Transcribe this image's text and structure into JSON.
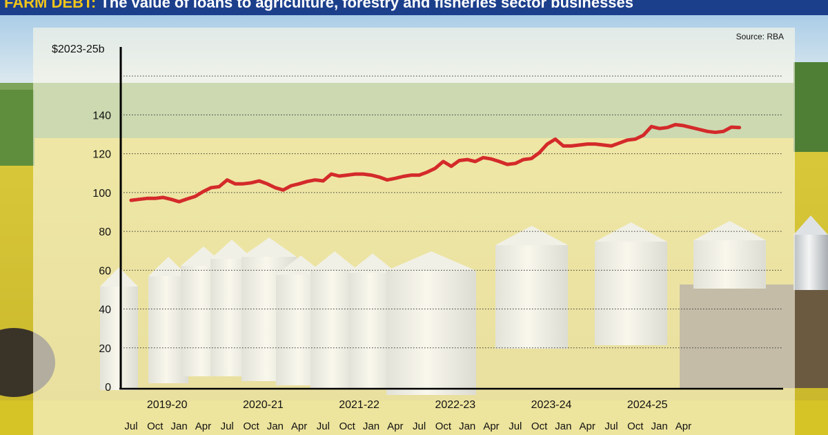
{
  "header": {
    "lead": "FARM DEBT:",
    "rest": " The value of loans to agriculture, forestry and fisheries sector businesses"
  },
  "source": "Source: RBA",
  "colors": {
    "line": "#d42a2a",
    "title_bg": "#1c3f8c",
    "title_accent": "#f2c619"
  },
  "chart_data": {
    "type": "line",
    "title": "FARM DEBT: The value of loans to agriculture, forestry and fisheries sector businesses",
    "ylabel": "$2023-25b",
    "xlabel": "",
    "ylim": [
      0,
      175
    ],
    "yticks": [
      0,
      20,
      40,
      60,
      80,
      100,
      120,
      140
    ],
    "grid": "horizontal dotted",
    "month_ticks": [
      "Jul",
      "Oct",
      "Jan",
      "Apr",
      "Jul",
      "Oct",
      "Jan",
      "Apr",
      "Jul",
      "Oct",
      "Jan",
      "Apr",
      "Jul",
      "Oct",
      "Jan",
      "Apr",
      "Jul",
      "Oct",
      "Jan",
      "Apr",
      "Jul",
      "Oct",
      "Jan",
      "Apr"
    ],
    "financial_years": [
      "2019-20",
      "2020-21",
      "2021-22",
      "2022-23",
      "2023-24",
      "2024-25"
    ],
    "series": [
      {
        "values": [
          96,
          96.5,
          97,
          97,
          97.5,
          96.5,
          95.3,
          96.7,
          98,
          100.5,
          102.5,
          103,
          106.5,
          104.5,
          104.5,
          105,
          106,
          104.5,
          102.5,
          101.3,
          103.5,
          104.5,
          105.7,
          106.5,
          106,
          109.5,
          108.5,
          109,
          109.5,
          109.5,
          109,
          108,
          106.5,
          107.3,
          108.3,
          109,
          109,
          110.5,
          112.5,
          116,
          113.5,
          116.5,
          117,
          116,
          118,
          117.3,
          116,
          114.5,
          115,
          117,
          117.5,
          120.5,
          125,
          127.5,
          124,
          124,
          124.5,
          125,
          125,
          124.5,
          124,
          125.5,
          127,
          127.5,
          129.5,
          134,
          133,
          133.5,
          135,
          134.5,
          133.5,
          132.5,
          131.5,
          131,
          131.5,
          133.7,
          133.5
        ]
      }
    ]
  }
}
